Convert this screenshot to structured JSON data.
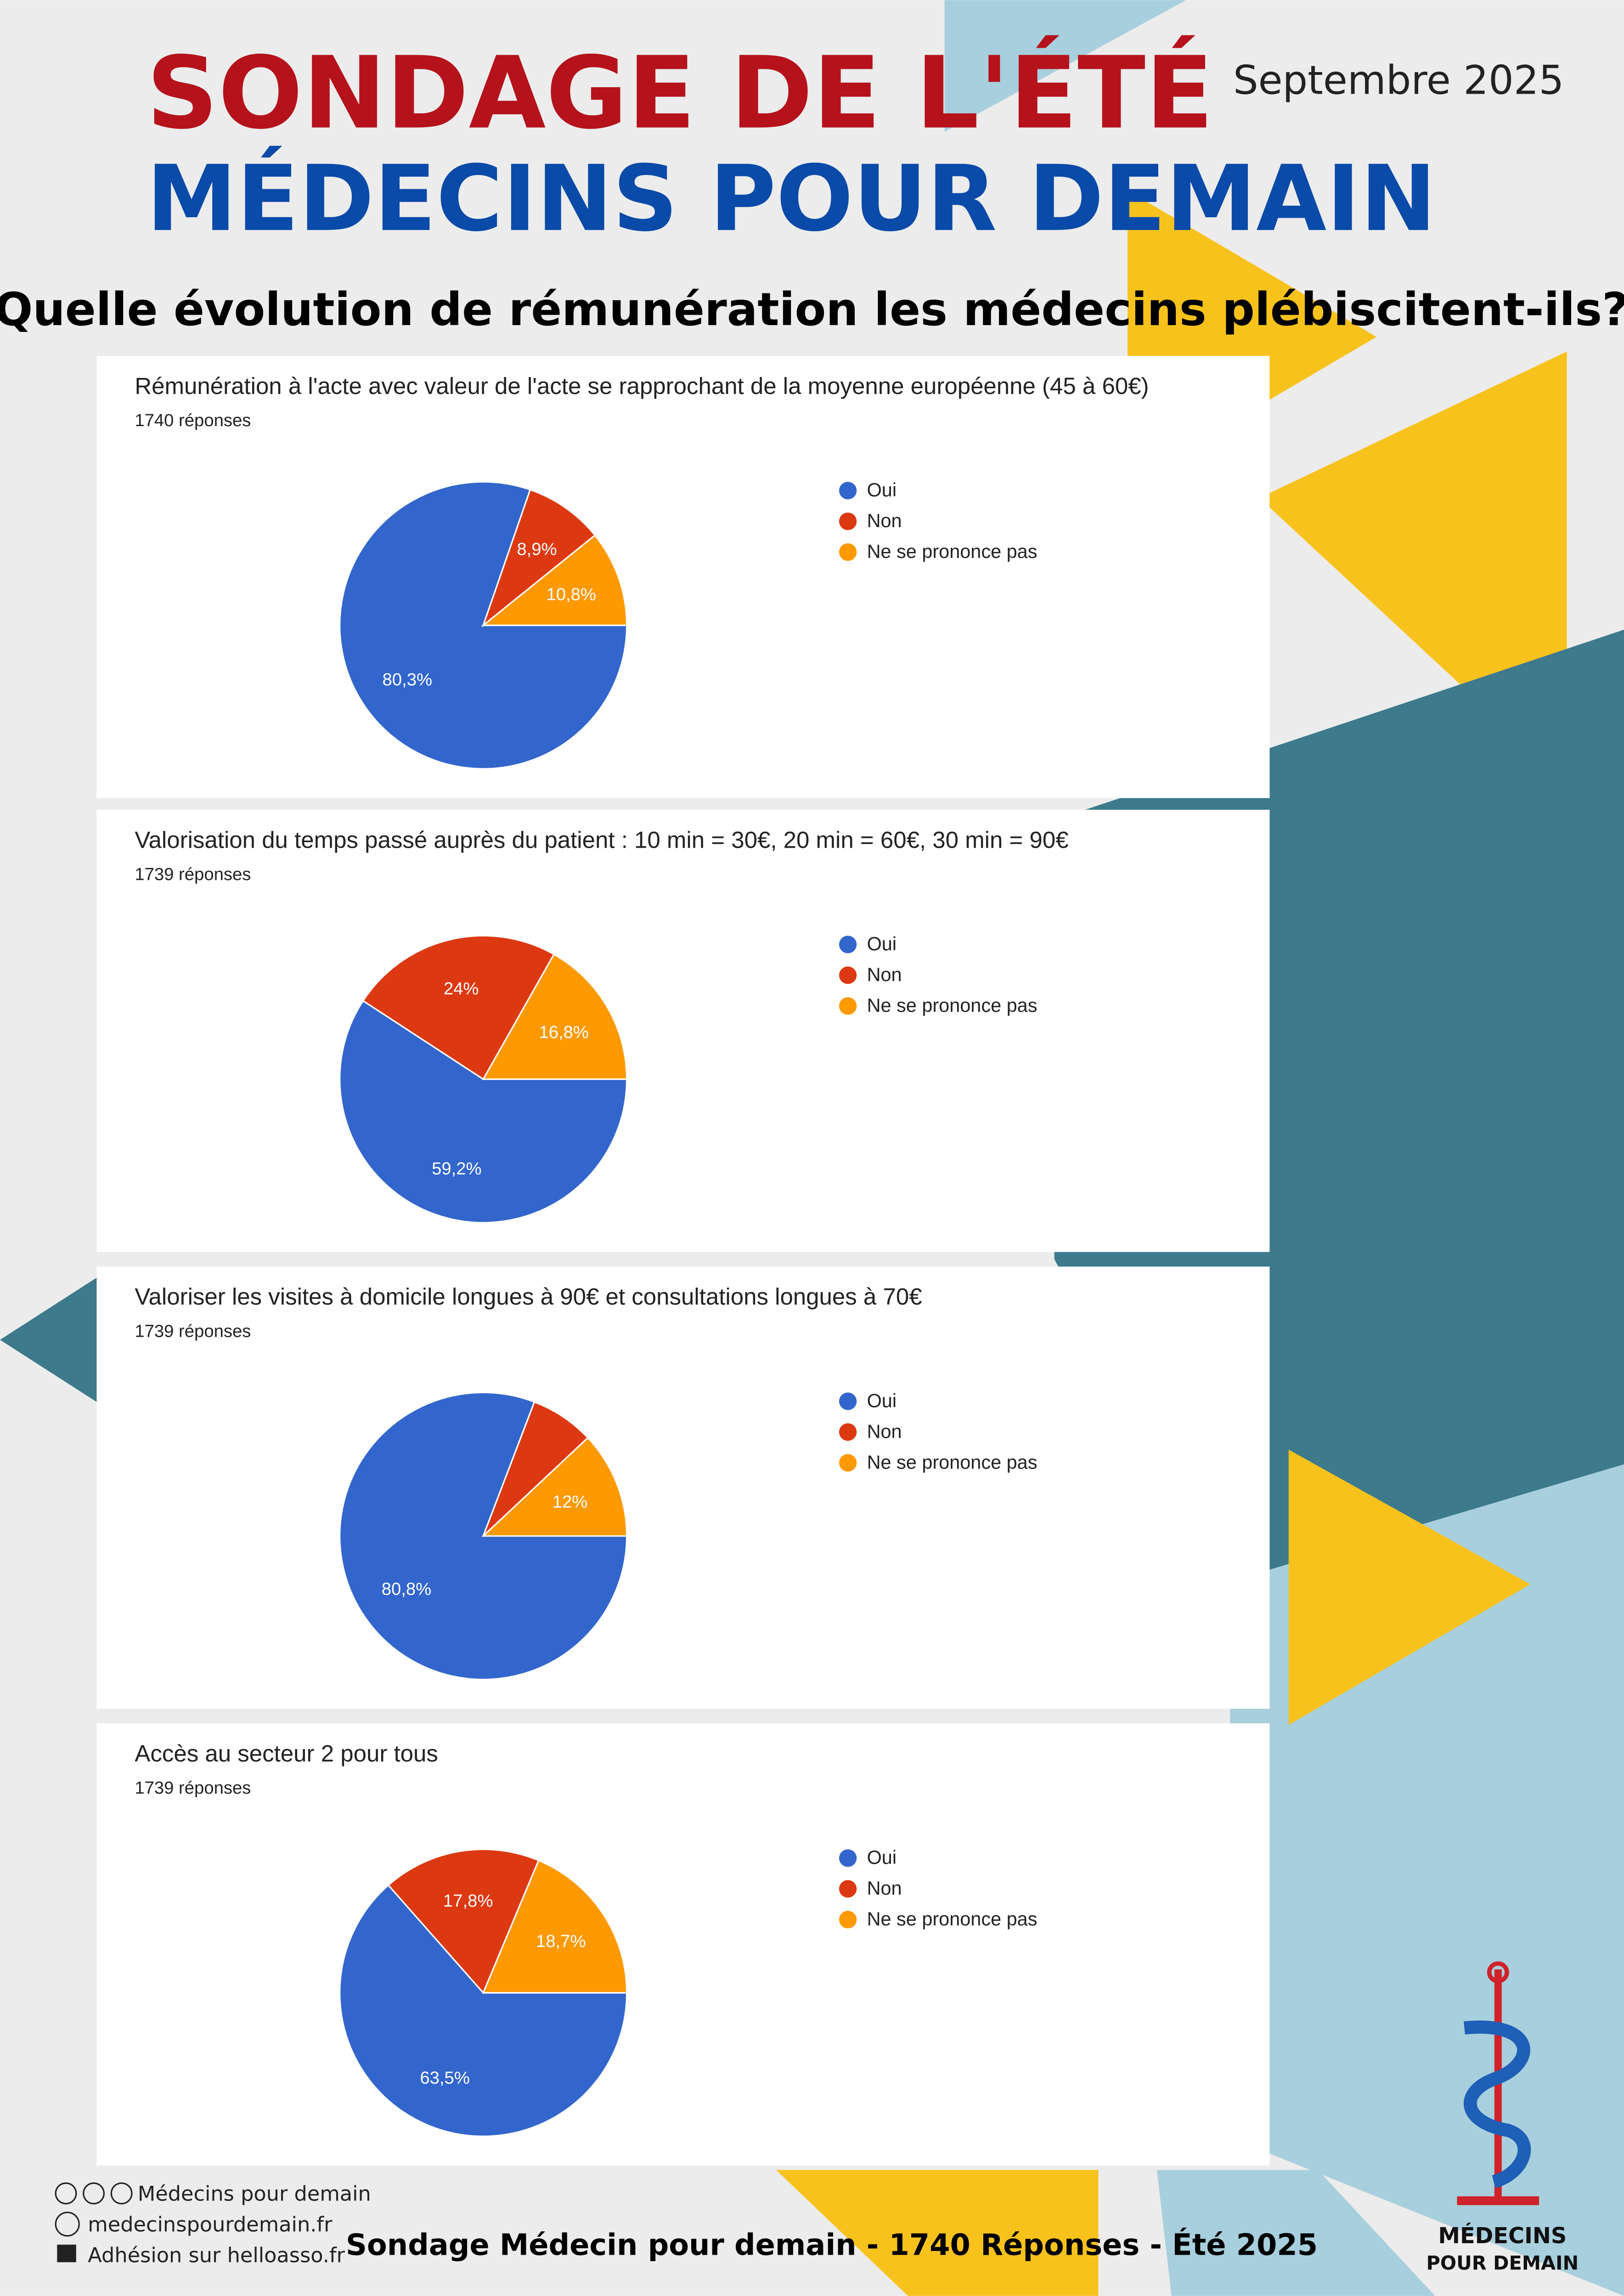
{
  "header": {
    "title_line1": "SONDAGE DE L'ÉTÉ",
    "title_line2": "MÉDECINS POUR DEMAIN",
    "date": "Septembre 2025",
    "question": "Quelle évolution de rémunération les médecins plébiscitent-ils?"
  },
  "chart_data": [
    {
      "type": "pie",
      "title": "Rémunération à l'acte avec valeur de l'acte se rapprochant de la moyenne européenne (45 à 60€)",
      "subtitle": "1740 réponses",
      "categories": [
        "Oui",
        "Non",
        "Ne se prononce pas"
      ],
      "colors": [
        "#3366cc",
        "#dc3912",
        "#ff9900"
      ],
      "values": [
        80.3,
        8.9,
        10.8
      ],
      "value_labels": [
        "80,3%",
        "8,9%",
        "10,8%"
      ]
    },
    {
      "type": "pie",
      "title": "Valorisation du temps passé auprès du patient : 10 min = 30€, 20 min = 60€, 30 min = 90€",
      "subtitle": "1739 réponses",
      "categories": [
        "Oui",
        "Non",
        "Ne se prononce pas"
      ],
      "colors": [
        "#3366cc",
        "#dc3912",
        "#ff9900"
      ],
      "values": [
        59.2,
        24,
        16.8
      ],
      "value_labels": [
        "59,2%",
        "24%",
        "16,8%"
      ]
    },
    {
      "type": "pie",
      "title": "Valoriser les visites à domicile longues à 90€ et consultations longues à 70€",
      "subtitle": "1739 réponses",
      "categories": [
        "Oui",
        "Non",
        "Ne se prononce pas"
      ],
      "colors": [
        "#3366cc",
        "#dc3912",
        "#ff9900"
      ],
      "values": [
        80.8,
        7.2,
        12
      ],
      "value_labels": [
        "80,8%",
        null,
        "12%"
      ]
    },
    {
      "type": "pie",
      "title": "Accès au secteur 2 pour tous",
      "subtitle": "1739 réponses",
      "categories": [
        "Oui",
        "Non",
        "Ne se prononce pas"
      ],
      "colors": [
        "#3366cc",
        "#dc3912",
        "#ff9900"
      ],
      "values": [
        63.5,
        17.8,
        18.7
      ],
      "value_labels": [
        "63,5%",
        "17,8%",
        "18,7%"
      ]
    }
  ],
  "footer": {
    "facebook": "Médecins pour demain",
    "website": "medecinspourdemain.fr",
    "membership": "Adhésion sur helloasso.fr",
    "summary": "Sondage Médecin pour demain - 1740 Réponses - Été 2025",
    "logo_line1": "MÉDECINS",
    "logo_line2": "POUR DEMAIN"
  }
}
